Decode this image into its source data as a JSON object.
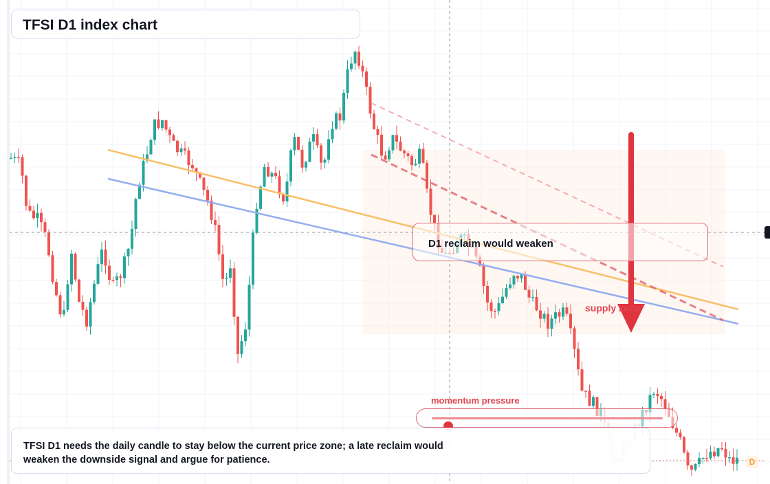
{
  "title": "TFSI D1 index chart",
  "callout": {
    "text": "D1 reclaim would weaken"
  },
  "zone_label": "supply zone",
  "momentum": {
    "label": "momentum pressure",
    "level": 0.07
  },
  "note": {
    "text": "TFSI D1 needs the daily candle to stay below the current price zone; a late reclaim would weaken the downside signal and argue for patience."
  },
  "interval_badge": "D",
  "colors": {
    "up": "#26a69a",
    "down": "#ef5350",
    "accent": "#e0343f",
    "orange_line": "#f8c06a",
    "blue_line": "#94aef0",
    "zone_fill": "#fdf1e8"
  },
  "chart_data": {
    "type": "candlestick",
    "title": "TFSI D1 index chart",
    "interval": "D1",
    "grid": true,
    "crosshair": true,
    "ohlc": []
  }
}
